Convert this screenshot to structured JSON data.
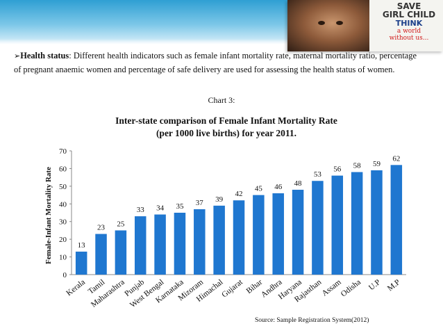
{
  "slide": {
    "bullet_lead": "Health status",
    "bullet_text": ": Different health indicators such as female infant mortality rate, maternal mortality ratio, percentage of pregnant anaemic women and percentage of safe delivery are used for assessing the health status of women.",
    "chart_caption": "Chart 3:",
    "source": "Source: Sample Registration System(2012)"
  },
  "poster": {
    "line1": "SAVE",
    "line2": "GIRL CHILD",
    "line3": "THINK",
    "line4": "a world",
    "line5": "without us..."
  },
  "colors": {
    "bar": "#1f77d0",
    "band": "#2f9fd3"
  },
  "chart_data": {
    "type": "bar",
    "title": "Inter-state comparison of Female Infant Mortality Rate",
    "subtitle": "(per 1000 live births) for year 2011.",
    "ylabel": "Female-Infant Mortality Rate",
    "xlabel": "",
    "ylim": [
      0,
      70
    ],
    "yticks": [
      0,
      10,
      20,
      30,
      40,
      50,
      60,
      70
    ],
    "grid": false,
    "categories": [
      "Kerala",
      "Tamil",
      "Maharashtra",
      "Punjab",
      "West Bengal",
      "Karnataka",
      "Mizoram",
      "Himachal",
      "Gujarat",
      "Bihar",
      "Andhra",
      "Haryana",
      "Rajasthan",
      "Assam",
      "Odisha",
      "U.P",
      "M.P"
    ],
    "values": [
      13,
      23,
      25,
      33,
      34,
      35,
      37,
      39,
      42,
      45,
      46,
      48,
      53,
      56,
      58,
      59,
      62
    ]
  }
}
